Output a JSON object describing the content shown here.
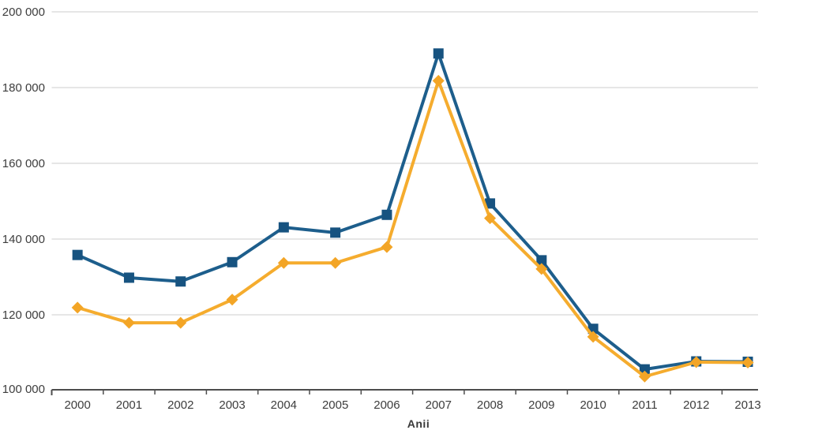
{
  "chart_data": {
    "type": "line",
    "x": [
      "2000",
      "2001",
      "2002",
      "2003",
      "2004",
      "2005",
      "2006",
      "2007",
      "2008",
      "2009",
      "2010",
      "2011",
      "2012",
      "2013"
    ],
    "series": [
      {
        "name": "blue-series",
        "marker": "square",
        "color": "#1d5e8c",
        "marker_color": "#175380",
        "values": [
          135800,
          129800,
          128800,
          133900,
          143100,
          141700,
          146400,
          189000,
          149400,
          134400,
          116300,
          105600,
          107700,
          107600
        ]
      },
      {
        "name": "yellow-series",
        "marker": "diamond",
        "color": "#f5ac2e",
        "marker_color": "#f3a526",
        "values": [
          121900,
          117900,
          117900,
          124000,
          133700,
          133700,
          137900,
          181800,
          145500,
          132100,
          114200,
          103700,
          107500,
          107400
        ]
      }
    ],
    "title": "",
    "xlabel": "Anii",
    "ylabel": "",
    "ylim": [
      100000,
      200000
    ],
    "ytick_step": 20000,
    "yticks": [
      100000,
      120000,
      140000,
      160000,
      180000,
      200000
    ],
    "ytick_labels": [
      "100 000",
      "120 000",
      "140 000",
      "160 000",
      "180 000",
      "200 000"
    ],
    "grid": true,
    "legend_position": "none",
    "axis_color": "#4d4d4d",
    "gridline_color": "#cccccc",
    "tick_label_color": "#3d3d3d"
  }
}
